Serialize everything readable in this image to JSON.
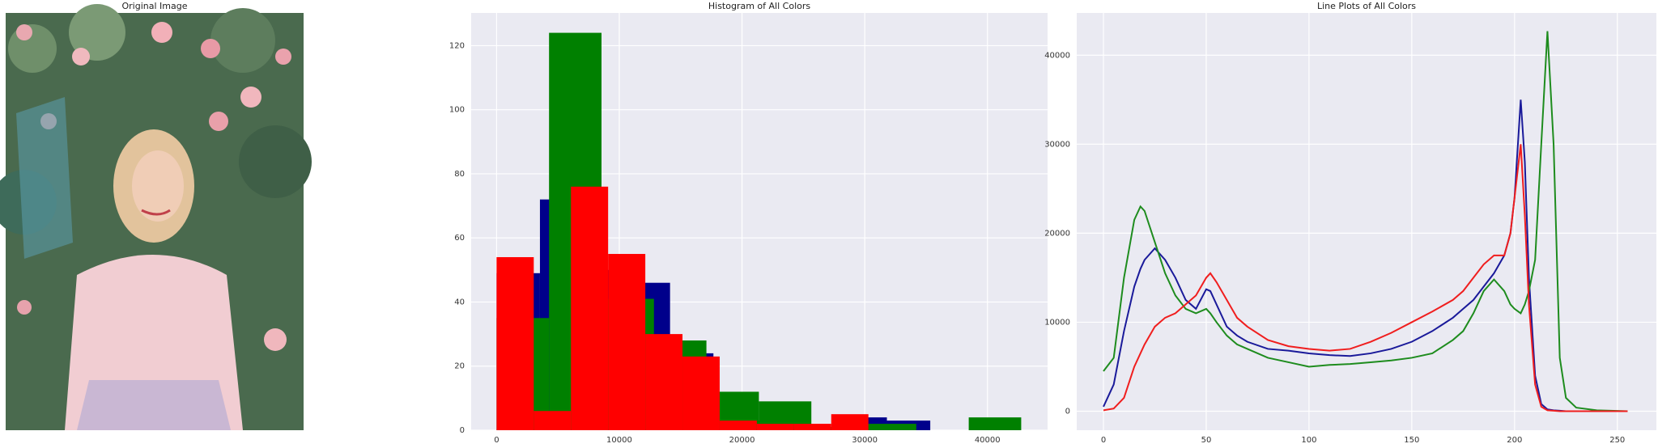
{
  "chart_data": [
    {
      "type": "image",
      "title": "Original Image"
    },
    {
      "type": "histogram",
      "title": "Histogram of All Colors",
      "xlim": [
        -2070,
        44900
      ],
      "ylim": [
        0,
        130.2
      ],
      "xticks": [
        0,
        10000,
        20000,
        30000,
        40000
      ],
      "yticks": [
        0,
        20,
        40,
        60,
        80,
        100,
        120
      ],
      "grid": true,
      "series": [
        {
          "name": "blue",
          "color": "#00008b",
          "bins": [
            0,
            3534,
            7068,
            10602,
            14136,
            17670,
            21204,
            24738,
            28272,
            31806,
            35340
          ],
          "values": [
            49,
            72,
            50,
            46,
            24,
            4,
            3,
            1,
            4,
            3
          ]
        },
        {
          "name": "green",
          "color": "#008000",
          "bins": [
            0,
            4275,
            8550,
            12825,
            17100,
            21375,
            25650,
            29925,
            34200,
            38475,
            42750
          ],
          "values": [
            35,
            124,
            41,
            28,
            12,
            9,
            1,
            2,
            0,
            4
          ]
        },
        {
          "name": "red",
          "color": "#ff0000",
          "bins": [
            0,
            3030,
            6060,
            9090,
            12120,
            15150,
            18180,
            21210,
            24240,
            27270,
            30300
          ],
          "values": [
            54,
            6,
            76,
            55,
            30,
            23,
            3,
            2,
            2,
            5
          ]
        }
      ]
    },
    {
      "type": "line",
      "title": "Line Plots of All Colors",
      "xlim": [
        -13,
        269
      ],
      "ylim": [
        -2137,
        44750
      ],
      "xticks": [
        0,
        50,
        100,
        150,
        200,
        250
      ],
      "yticks": [
        0,
        10000,
        20000,
        30000,
        40000
      ],
      "grid": true,
      "x": [
        0,
        5,
        10,
        15,
        18,
        20,
        25,
        30,
        35,
        40,
        45,
        50,
        52,
        55,
        60,
        65,
        70,
        80,
        90,
        100,
        110,
        120,
        130,
        140,
        150,
        160,
        170,
        175,
        180,
        185,
        190,
        195,
        198,
        200,
        203,
        205,
        207,
        210,
        213,
        216,
        219,
        222,
        225,
        230,
        240,
        255
      ],
      "series": [
        {
          "name": "blue",
          "color": "#1a1a9a",
          "values": [
            500,
            3000,
            9000,
            14000,
            16000,
            17000,
            18300,
            17000,
            15000,
            12500,
            11500,
            13700,
            13500,
            12000,
            9500,
            8500,
            7800,
            7000,
            6800,
            6500,
            6300,
            6200,
            6500,
            7000,
            7800,
            9000,
            10500,
            11500,
            12500,
            14000,
            15500,
            17500,
            20000,
            24000,
            35000,
            28000,
            15000,
            4000,
            800,
            200,
            100,
            50,
            0,
            0,
            0,
            0
          ]
        },
        {
          "name": "green",
          "color": "#1e8c1e",
          "values": [
            4500,
            6000,
            15000,
            21500,
            23000,
            22500,
            19000,
            15500,
            13000,
            11500,
            11000,
            11500,
            11000,
            10000,
            8500,
            7500,
            7000,
            6000,
            5500,
            5000,
            5200,
            5300,
            5500,
            5700,
            6000,
            6500,
            8000,
            9000,
            11000,
            13500,
            14800,
            13500,
            12000,
            11500,
            11000,
            12000,
            13500,
            17000,
            30000,
            42700,
            30000,
            6000,
            1500,
            400,
            100,
            0
          ]
        },
        {
          "name": "red",
          "color": "#f01e1e",
          "values": [
            100,
            300,
            1500,
            5000,
            6500,
            7500,
            9500,
            10500,
            11000,
            12000,
            13000,
            15000,
            15500,
            14500,
            12500,
            10500,
            9500,
            8000,
            7300,
            7000,
            6800,
            7000,
            7800,
            8800,
            10000,
            11200,
            12500,
            13500,
            15000,
            16500,
            17500,
            17500,
            20000,
            24000,
            30000,
            22000,
            12000,
            3000,
            500,
            100,
            50,
            0,
            0,
            0,
            0,
            0
          ]
        }
      ]
    }
  ]
}
